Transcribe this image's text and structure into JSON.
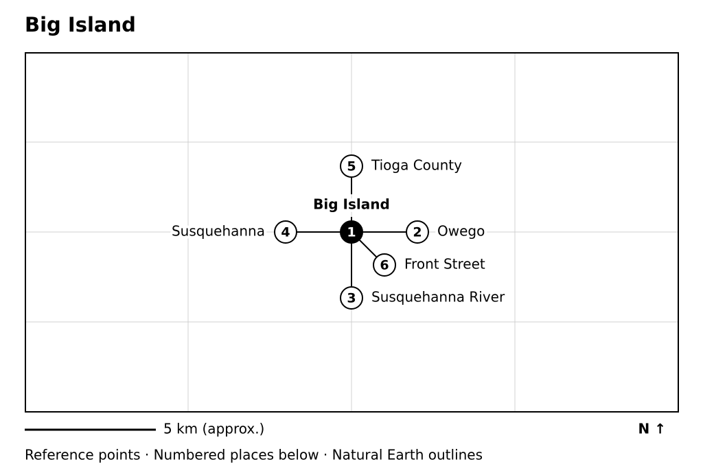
{
  "title": "Big Island",
  "nodes": [
    {
      "number": 1,
      "label": "Big Island"
    },
    {
      "number": 2,
      "label": "Owego"
    },
    {
      "number": 3,
      "label": "Susquehanna River"
    },
    {
      "number": 4,
      "label": "Susquehanna"
    },
    {
      "number": 5,
      "label": "Tioga County"
    },
    {
      "number": 6,
      "label": "Front Street"
    }
  ],
  "scale_label": "5 km (approx.)",
  "north_label": "N ↑",
  "footer": "Reference points · Numbered places below · Natural Earth outlines"
}
